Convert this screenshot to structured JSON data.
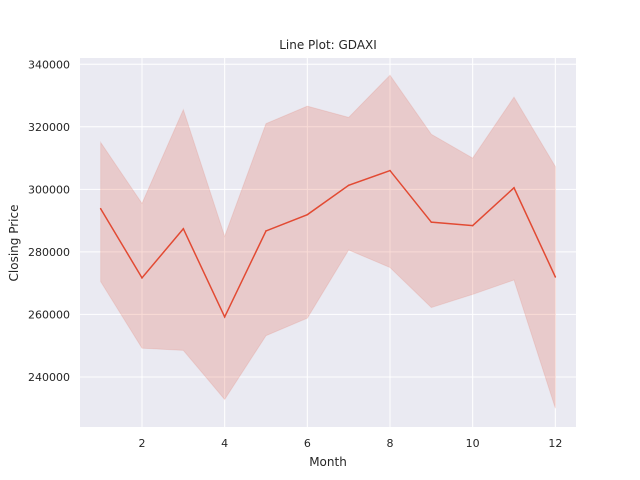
{
  "chart_data": {
    "type": "line",
    "title": "Line Plot: GDAXI",
    "xlabel": "Month",
    "ylabel": "Closing Price",
    "xlim": [
      0.5,
      12.5
    ],
    "ylim": [
      224000,
      342000
    ],
    "xticks": [
      2,
      4,
      6,
      8,
      10,
      12
    ],
    "yticks": [
      240000,
      260000,
      280000,
      300000,
      320000,
      340000
    ],
    "grid": true,
    "colors": {
      "background": "#eaeaf2",
      "grid": "#ffffff",
      "line": "#e24a33",
      "band": "#e24a33"
    },
    "series": [
      {
        "x": [
          1,
          2,
          3,
          4,
          5,
          6,
          7,
          8,
          9,
          10,
          11,
          12
        ],
        "y": [
          293800,
          271700,
          287400,
          259200,
          286700,
          291900,
          301300,
          306000,
          289500,
          288400,
          300500,
          272000
        ],
        "ci_low": [
          270500,
          249200,
          248500,
          232800,
          253200,
          258800,
          280600,
          275000,
          262200,
          266400,
          271000,
          230000
        ],
        "ci_high": [
          315000,
          295500,
          325500,
          285000,
          321000,
          326600,
          323000,
          336500,
          317600,
          310000,
          329500,
          307300
        ]
      }
    ]
  }
}
